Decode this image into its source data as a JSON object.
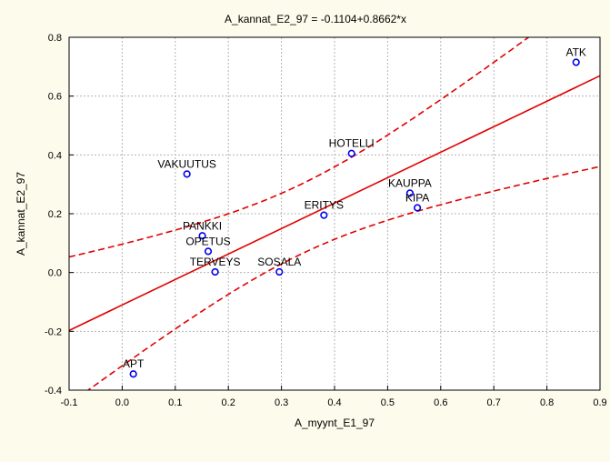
{
  "chart_data": {
    "type": "scatter",
    "title": "A_kannat_E2_97 = -0.1104+0.8662*x",
    "xlabel": "A_myynt_E1_97",
    "ylabel": "A_kannat_E2_97",
    "xlim": [
      -0.1,
      0.9
    ],
    "ylim": [
      -0.4,
      0.8
    ],
    "xticks": [
      "-0.1",
      "0.0",
      "0.1",
      "0.2",
      "0.3",
      "0.4",
      "0.5",
      "0.6",
      "0.7",
      "0.8",
      "0.9"
    ],
    "yticks": [
      "-0.4",
      "-0.2",
      "0.0",
      "0.2",
      "0.4",
      "0.6",
      "0.8"
    ],
    "grid": true,
    "points": [
      {
        "label": "ATK",
        "x": 0.855,
        "y": 0.715
      },
      {
        "label": "HOTELLI",
        "x": 0.432,
        "y": 0.405
      },
      {
        "label": "VAKUUTUS",
        "x": 0.122,
        "y": 0.335
      },
      {
        "label": "KAUPPA",
        "x": 0.542,
        "y": 0.27
      },
      {
        "label": "KIPA",
        "x": 0.556,
        "y": 0.22
      },
      {
        "label": "ERITYS",
        "x": 0.38,
        "y": 0.195
      },
      {
        "label": "PANKKI",
        "x": 0.151,
        "y": 0.125
      },
      {
        "label": "OPETUS",
        "x": 0.162,
        "y": 0.072
      },
      {
        "label": "TERVEYS",
        "x": 0.175,
        "y": 0.002
      },
      {
        "label": "SOSALA",
        "x": 0.296,
        "y": 0.002
      },
      {
        "label": "APT",
        "x": 0.021,
        "y": -0.345
      }
    ],
    "regression": {
      "intercept": -0.1104,
      "slope": 0.8662
    },
    "colors": {
      "points": "#0000ee",
      "fit_line": "#e00000",
      "band": "#e00000",
      "plot_bg": "#ffffff",
      "page_bg": "#fdfbeb",
      "grid": "#b4b4b4"
    }
  }
}
